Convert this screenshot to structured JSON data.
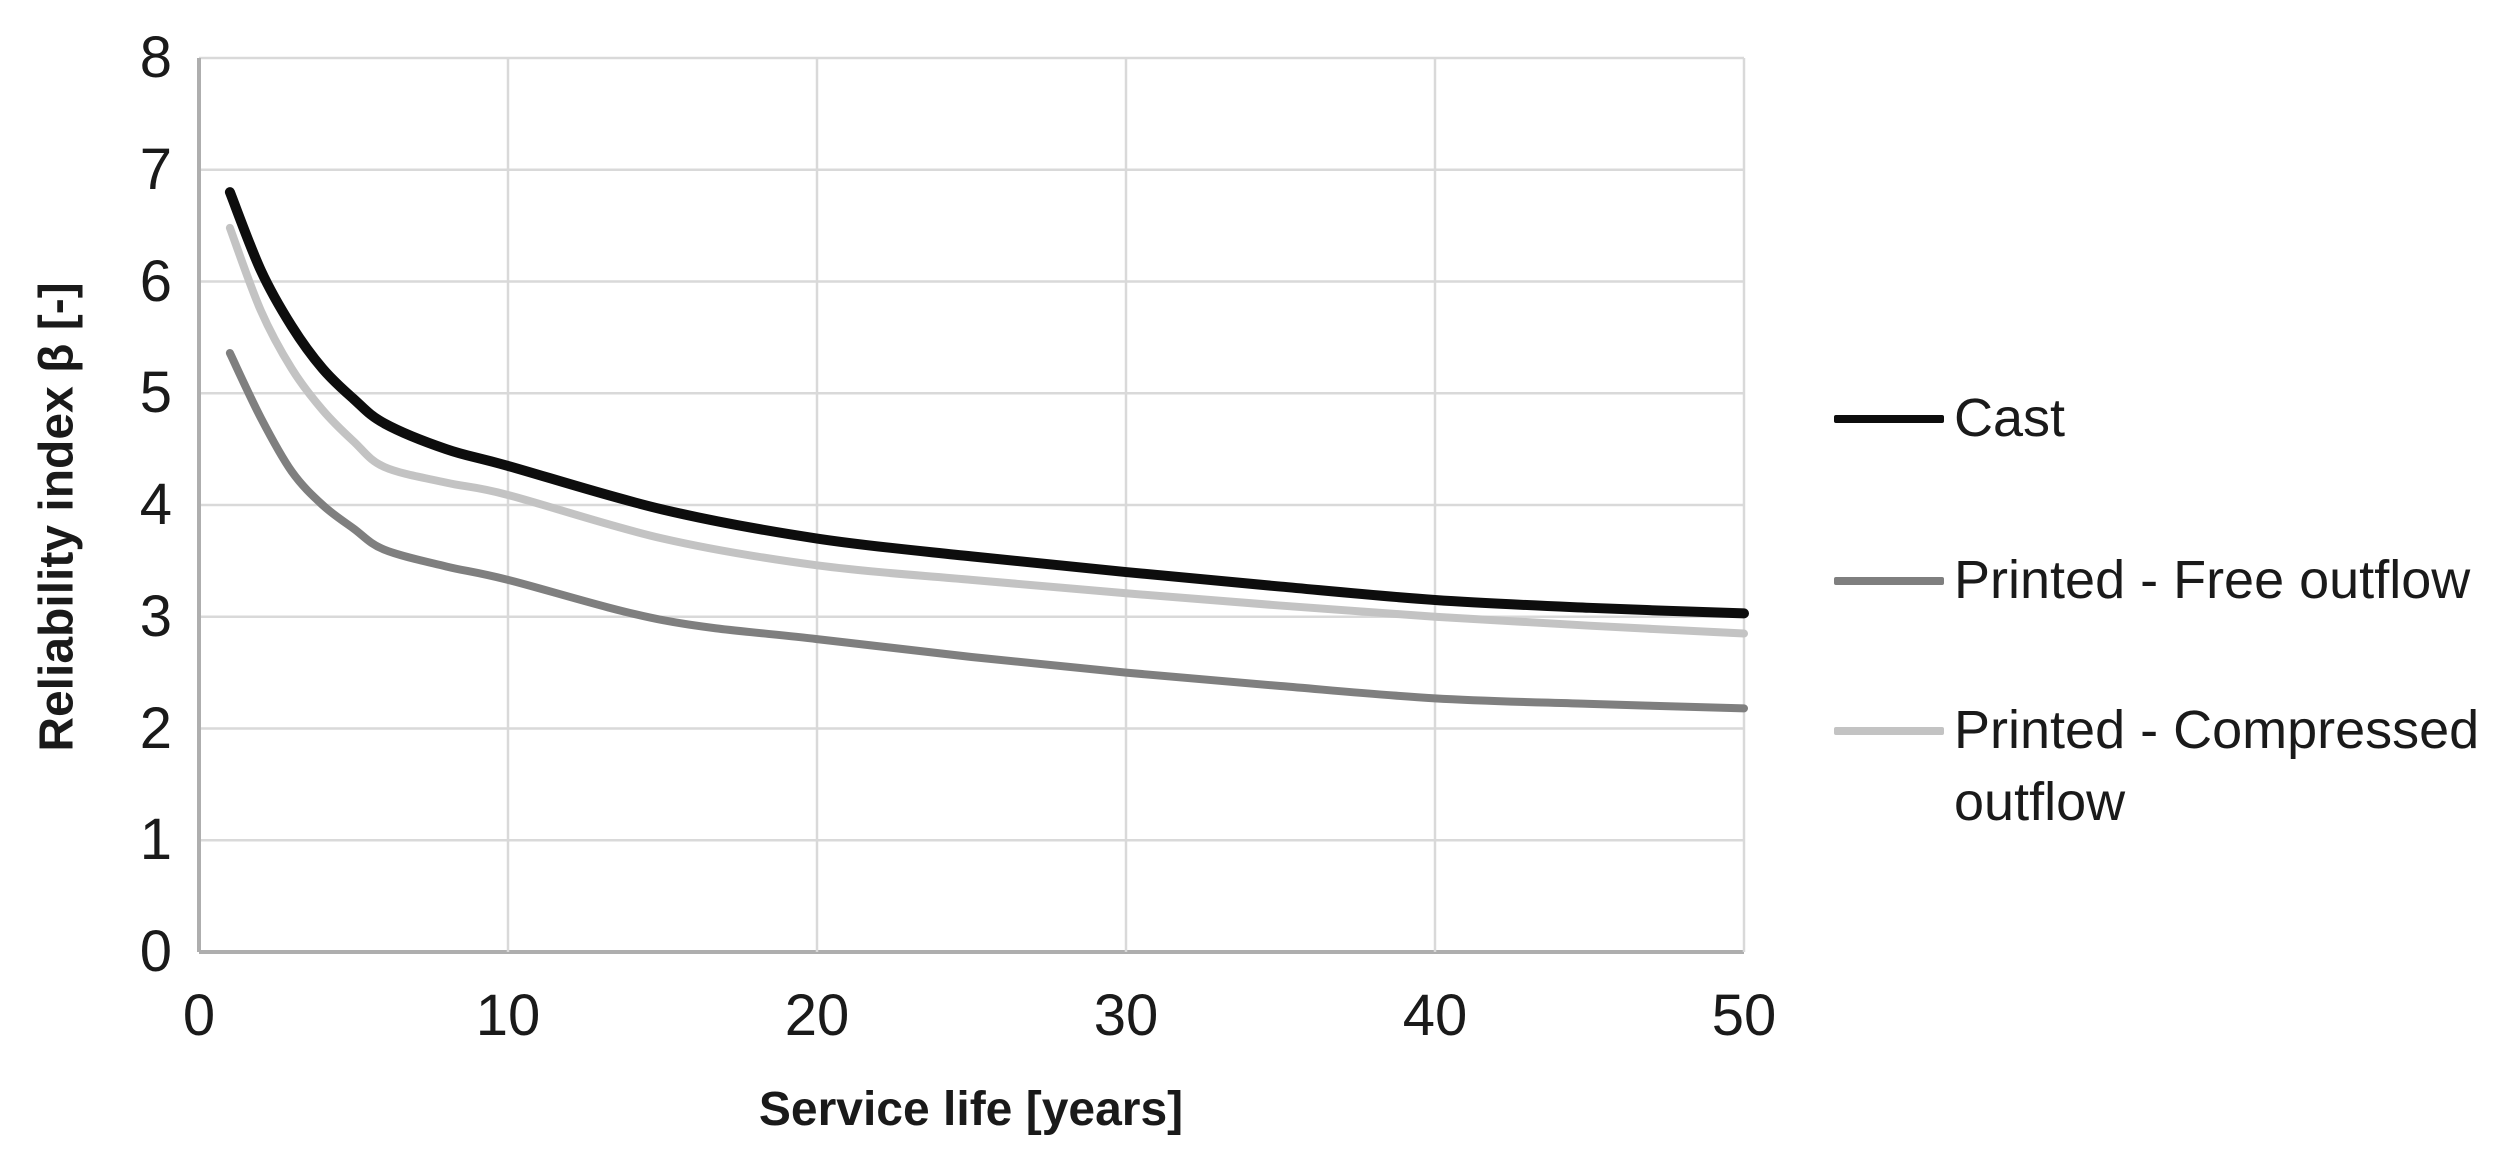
{
  "chart_data": {
    "type": "line",
    "title": "",
    "xlabel": "Service life [years]",
    "ylabel": "Reliability index β [-]",
    "xlim": [
      0,
      50
    ],
    "ylim": [
      0,
      8
    ],
    "x_ticks": [
      0,
      10,
      20,
      30,
      40,
      50
    ],
    "y_ticks": [
      0,
      1,
      2,
      3,
      4,
      5,
      6,
      7,
      8
    ],
    "grid": true,
    "legend_position": "right",
    "x": [
      1,
      2,
      3,
      4,
      5,
      6,
      8,
      10,
      15,
      20,
      25,
      30,
      35,
      40,
      45,
      50
    ],
    "series": [
      {
        "name": "Cast",
        "color": "#0d0d0d",
        "line_width": 10,
        "values": [
          6.8,
          6.1,
          5.6,
          5.22,
          4.95,
          4.73,
          4.5,
          4.35,
          3.96,
          3.7,
          3.54,
          3.4,
          3.27,
          3.15,
          3.08,
          3.03
        ]
      },
      {
        "name": "Printed - Free outflow",
        "color": "#7f7f7f",
        "line_width": 8,
        "values": [
          5.36,
          4.78,
          4.3,
          4.0,
          3.79,
          3.6,
          3.45,
          3.33,
          2.97,
          2.8,
          2.64,
          2.5,
          2.38,
          2.27,
          2.22,
          2.18
        ]
      },
      {
        "name": "Printed - Compressed outflow",
        "color": "#c3c3c3",
        "line_width": 8,
        "values": [
          6.48,
          5.74,
          5.22,
          4.85,
          4.57,
          4.34,
          4.2,
          4.09,
          3.7,
          3.46,
          3.33,
          3.21,
          3.1,
          3.0,
          2.92,
          2.85
        ]
      }
    ],
    "colors": {
      "gridline": "#d9d9d9",
      "axis_line": "#aeaeae",
      "text": "#1a1a1a",
      "background": "#ffffff"
    }
  }
}
